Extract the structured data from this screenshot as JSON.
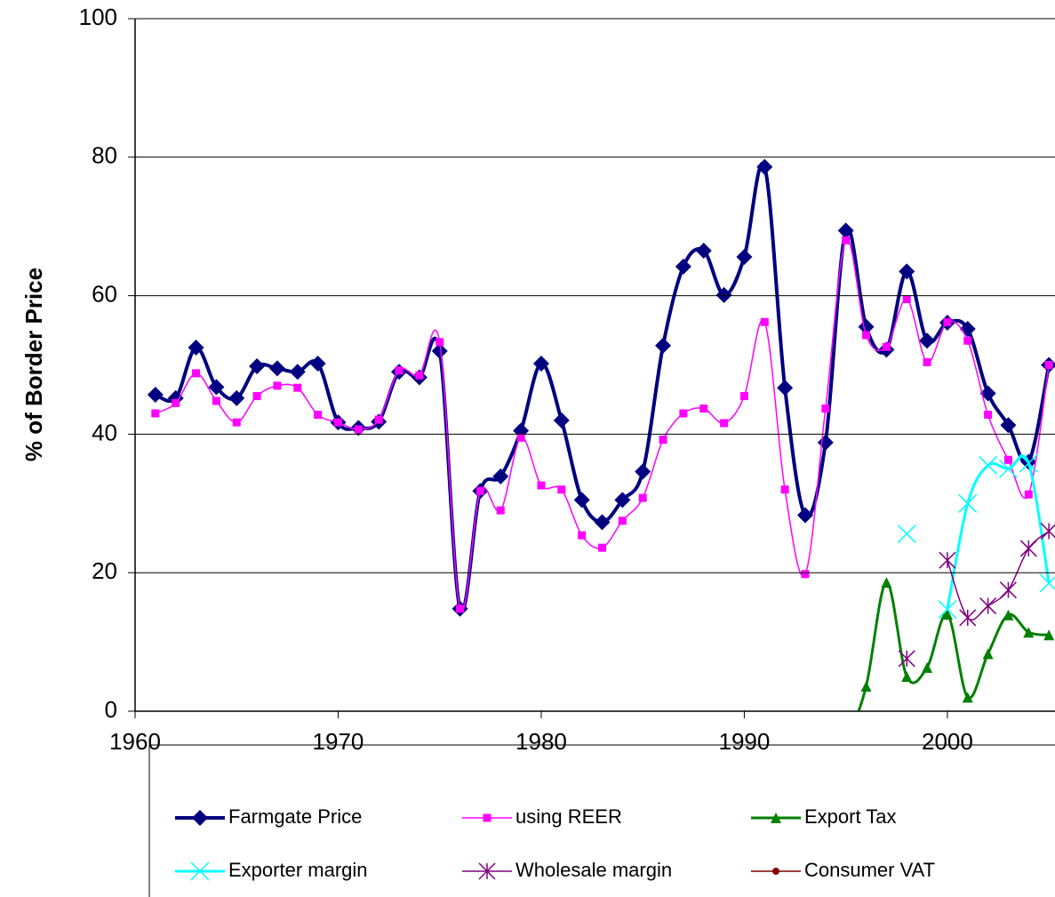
{
  "chart_data": {
    "type": "line",
    "y_label": "% of Border Price",
    "x": [
      1961,
      1962,
      1963,
      1964,
      1965,
      1966,
      1967,
      1968,
      1969,
      1970,
      1971,
      1972,
      1973,
      1974,
      1975,
      1976,
      1977,
      1978,
      1979,
      1980,
      1981,
      1982,
      1983,
      1984,
      1985,
      1986,
      1987,
      1988,
      1989,
      1990,
      1991,
      1992,
      1993,
      1994,
      1995,
      1996,
      1997,
      1998,
      1999,
      2000,
      2001,
      2002,
      2003,
      2004,
      2005
    ],
    "xlim": [
      1960,
      2005.3
    ],
    "xticks": [
      1960,
      1970,
      1980,
      1990,
      2000
    ],
    "ylim": [
      0,
      100
    ],
    "yticks": [
      0,
      20,
      40,
      60,
      80,
      100
    ],
    "grid": true,
    "legend": "bottom",
    "series": [
      {
        "name": "Farmgate Price",
        "color": "#000080",
        "marker": "diamond",
        "values": [
          45.7,
          45.2,
          52.5,
          46.8,
          45.2,
          49.8,
          49.5,
          49,
          50.2,
          41.7,
          40.9,
          41.8,
          49,
          48.2,
          52,
          14.8,
          31.8,
          33.9,
          40.5,
          50.2,
          42,
          30.5,
          27.3,
          30.5,
          34.6,
          52.8,
          64.2,
          66.5,
          60.1,
          65.6,
          78.6,
          46.7,
          28.3,
          38.8,
          69.4,
          55.5,
          52.2,
          63.5,
          53.5,
          56.1,
          55.2,
          45.9,
          41.3,
          36,
          50
        ]
      },
      {
        "name": "using REER",
        "color": "#ff00ff",
        "marker": "square",
        "values": [
          43,
          44.5,
          48.8,
          44.8,
          41.7,
          45.5,
          47,
          46.7,
          42.8,
          41.7,
          40.7,
          42.1,
          49.2,
          48.5,
          53.3,
          14.8,
          31.8,
          29,
          39.5,
          32.6,
          32,
          25.4,
          23.6,
          27.5,
          30.8,
          39.2,
          43,
          43.7,
          41.6,
          45.5,
          56.2,
          32,
          19.8,
          43.7,
          68,
          54.3,
          52.6,
          59.5,
          50.4,
          56.2,
          53.5,
          42.8,
          36.3,
          31.3,
          50
        ]
      },
      {
        "name": "Export Tax",
        "color": "#008000",
        "marker": "triangle",
        "values": [
          null,
          null,
          null,
          null,
          null,
          null,
          null,
          null,
          null,
          null,
          null,
          null,
          null,
          null,
          null,
          null,
          null,
          null,
          null,
          null,
          null,
          null,
          null,
          null,
          null,
          null,
          null,
          null,
          null,
          null,
          null,
          null,
          null,
          null,
          -5,
          3.6,
          18.6,
          5,
          6.3,
          14,
          2,
          8.3,
          13.9,
          11.4,
          11
        ]
      },
      {
        "name": "Exporter margin",
        "color": "#00ffff",
        "marker": "x",
        "values": [
          null,
          null,
          null,
          null,
          null,
          null,
          null,
          null,
          null,
          null,
          null,
          null,
          null,
          null,
          null,
          null,
          null,
          null,
          null,
          null,
          null,
          null,
          null,
          null,
          null,
          null,
          null,
          null,
          null,
          null,
          null,
          null,
          null,
          null,
          null,
          null,
          null,
          25.6,
          null,
          14.7,
          30,
          35.5,
          35,
          35.8,
          18.5
        ]
      },
      {
        "name": "Wholesale margin",
        "color": "#800080",
        "marker": "star",
        "values": [
          null,
          null,
          null,
          null,
          null,
          null,
          null,
          null,
          null,
          null,
          null,
          null,
          null,
          null,
          null,
          null,
          null,
          null,
          null,
          null,
          null,
          null,
          null,
          null,
          null,
          null,
          null,
          null,
          null,
          null,
          null,
          null,
          null,
          null,
          null,
          null,
          null,
          7.6,
          null,
          21.8,
          13.5,
          15.2,
          17.5,
          23.5,
          26
        ]
      },
      {
        "name": "Consumer VAT",
        "color": "#800000",
        "marker": "circle",
        "values": [
          null,
          null,
          null,
          null,
          null,
          null,
          null,
          null,
          null,
          null,
          null,
          null,
          null,
          null,
          null,
          null,
          null,
          null,
          null,
          null,
          null,
          null,
          null,
          null,
          null,
          null,
          null,
          null,
          null,
          null,
          null,
          null,
          null,
          null,
          null,
          null,
          null,
          null,
          null,
          null,
          null,
          null,
          null,
          null,
          null
        ]
      }
    ]
  }
}
